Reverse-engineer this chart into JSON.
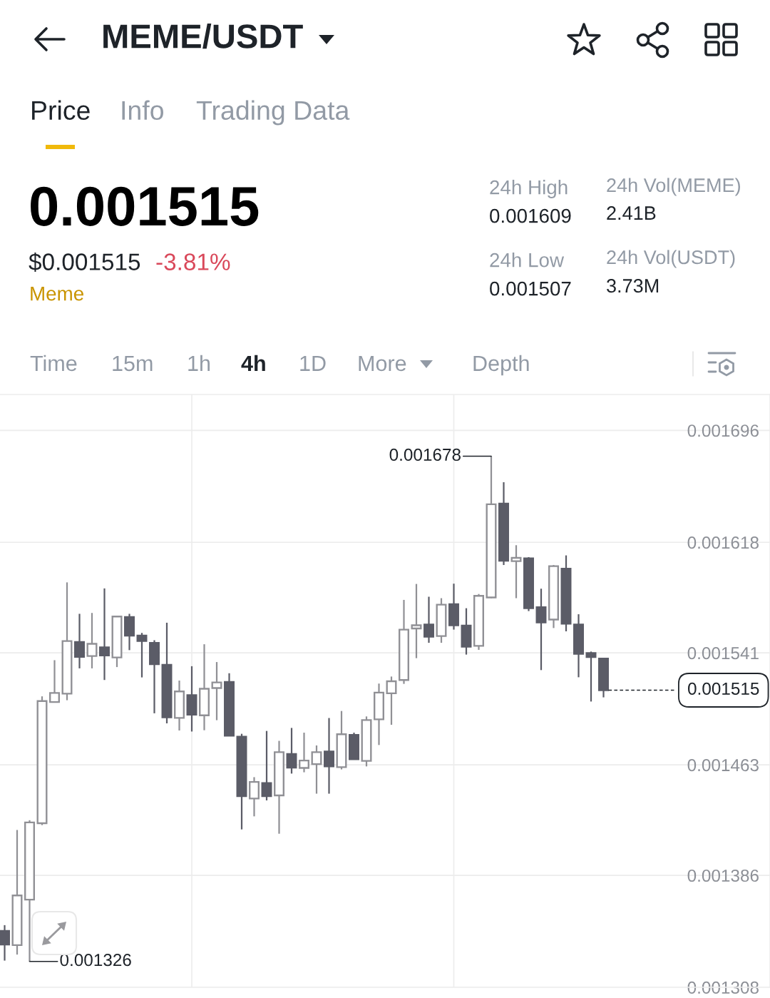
{
  "chart_data": {
    "type": "candlestick",
    "title": "MEME/USDT",
    "categories": [
      null,
      null,
      null,
      null,
      null,
      null,
      null,
      null,
      null,
      null,
      null,
      null,
      null,
      null,
      null,
      null,
      null,
      null,
      null,
      null,
      null,
      null,
      null,
      null,
      null,
      null,
      null,
      null,
      null,
      null,
      null,
      null,
      null,
      null,
      null,
      null,
      null,
      null,
      null,
      null,
      null,
      null,
      null,
      null,
      null,
      null,
      null,
      null,
      null
    ],
    "ohlc": [
      [
        0.0013473,
        0.0013513,
        0.0013266,
        0.0013378
      ],
      [
        0.0013374,
        0.0014176,
        0.0013308,
        0.001372
      ],
      [
        0.0013691,
        0.0014244,
        0.001326,
        0.0014229
      ],
      [
        0.0014223,
        0.0015107,
        0.001421,
        0.0015074
      ],
      [
        0.0015067,
        0.0015359,
        0.0015067,
        0.0015131
      ],
      [
        0.0015126,
        0.0015901,
        0.001508,
        0.0015492
      ],
      [
        0.0015486,
        0.0015682,
        0.0015302,
        0.0015382
      ],
      [
        0.0015388,
        0.0015688,
        0.0015302,
        0.0015473
      ],
      [
        0.0015449,
        0.0015859,
        0.0015221,
        0.0015392
      ],
      [
        0.0015378,
        0.0015667,
        0.0015311,
        0.0015663
      ],
      [
        0.001566,
        0.0015682,
        0.0015429,
        0.001553
      ],
      [
        0.001553,
        0.0015549,
        0.0015239,
        0.0015492
      ],
      [
        0.0015479,
        0.0015498,
        0.0014989,
        0.0015331
      ],
      [
        0.0015327,
        0.001562,
        0.0014919,
        0.0014961
      ],
      [
        0.0014957,
        0.0015217,
        0.0014869,
        0.0015141
      ],
      [
        0.0015116,
        0.0015317,
        0.0014862,
        0.0014979
      ],
      [
        0.0014975,
        0.001547,
        0.0014871,
        0.001516
      ],
      [
        0.0015165,
        0.0015346,
        0.0014941,
        0.0015204
      ],
      [
        0.0015207,
        0.0015268,
        0.0014833,
        0.0014833
      ],
      [
        0.0014826,
        0.0014846,
        0.001418,
        0.0014412
      ],
      [
        0.0014395,
        0.0014544,
        0.0014271,
        0.0014511
      ],
      [
        0.0014503,
        0.0014866,
        0.0014382,
        0.0014412
      ],
      [
        0.0014417,
        0.0014797,
        0.001415,
        0.0014718
      ],
      [
        0.0014705,
        0.0014887,
        0.0014569,
        0.0014611
      ],
      [
        0.0014608,
        0.0014854,
        0.0014578,
        0.001466
      ],
      [
        0.0014635,
        0.0014765,
        0.0014429,
        0.0014718
      ],
      [
        0.0014723,
        0.0014956,
        0.0014429,
        0.0014619
      ],
      [
        0.0014614,
        0.0015005,
        0.0014598,
        0.0014843
      ],
      [
        0.0014838,
        0.0014854,
        0.0014669,
        0.0014669
      ],
      [
        0.0014657,
        0.0014967,
        0.0014619,
        0.0014942
      ],
      [
        0.0014947,
        0.0015196,
        0.0014768,
        0.0015133
      ],
      [
        0.0015128,
        0.0015245,
        0.0014909,
        0.0015212
      ],
      [
        0.0015221,
        0.0015779,
        0.0015194,
        0.0015572
      ],
      [
        0.001558,
        0.001589,
        0.0015373,
        0.0015602
      ],
      [
        0.0015608,
        0.0015801,
        0.001548,
        0.0015522
      ],
      [
        0.0015527,
        0.0015791,
        0.001548,
        0.0015746
      ],
      [
        0.0015749,
        0.0015892,
        0.0015572,
        0.0015602
      ],
      [
        0.00156,
        0.0015721,
        0.0015398,
        0.0015453
      ],
      [
        0.0015459,
        0.001582,
        0.0015431,
        0.0015807
      ],
      [
        0.0015796,
        0.001678,
        0.0015791,
        0.0016445
      ],
      [
        0.001645,
        0.0016599,
        0.0016022,
        0.0016052
      ],
      [
        0.0016049,
        0.001616,
        0.0015791,
        0.0016072
      ],
      [
        0.0016069,
        0.0016077,
        0.0015701,
        0.0015721
      ],
      [
        0.0015728,
        0.0015857,
        0.001529,
        0.0015622
      ],
      [
        0.0015642,
        0.0016022,
        0.0015583,
        0.0016014
      ],
      [
        0.0015997,
        0.0016089,
        0.001556,
        0.0015613
      ],
      [
        0.0015608,
        0.0015679,
        0.001524,
        0.0015403
      ],
      [
        0.0015409,
        0.0015419,
        0.0015071,
        0.0015381
      ],
      [
        0.001537,
        0.001537,
        0.00151,
        0.001515
      ]
    ],
    "colors": [
      "#5b5c67",
      "#909095",
      "#909095",
      "#909095",
      "#909095",
      "#909095",
      "#5b5c67",
      "#909095",
      "#5b5c67",
      "#909095",
      "#5b5c67",
      "#5b5c67",
      "#5b5c67",
      "#5b5c67",
      "#909095",
      "#5b5c67",
      "#909095",
      "#909095",
      "#5b5c67",
      "#5b5c67",
      "#909095",
      "#5b5c67",
      "#909095",
      "#5b5c67",
      "#909095",
      "#909095",
      "#5b5c67",
      "#909095",
      "#5b5c67",
      "#909095",
      "#909095",
      "#909095",
      "#909095",
      "#909095",
      "#5b5c67",
      "#909095",
      "#5b5c67",
      "#5b5c67",
      "#909095",
      "#909095",
      "#5b5c67",
      "#909095",
      "#5b5c67",
      "#5b5c67",
      "#909095",
      "#5b5c67",
      "#5b5c67",
      "#5b5c67",
      "#5b5c67"
    ],
    "ylim": [
      0.001308,
      0.001721
    ],
    "yticks": [
      0.001308,
      0.001386,
      0.001463,
      0.001541,
      0.001618,
      0.001696
    ],
    "tick_labels": "y",
    "grid": "y",
    "ref_lines": [
      {
        "axis": "y",
        "value": 0.001515,
        "label": "0.001515",
        "line_style": "dashed",
        "color": "#1e2329"
      }
    ],
    "annotations": [
      "Price",
      "Info",
      "Trading Data",
      "0.001515",
      "$0.001515",
      "-3.81%",
      "Meme",
      "24h High",
      "0.001609",
      "24h Low",
      "0.001507",
      "24h Vol(MEME)",
      "2.41B",
      "24h Vol(USDT)",
      "3.73M",
      "Time",
      "15m",
      "1h",
      "4h",
      "1D",
      "More",
      "Depth",
      "0.001678",
      "0.001326"
    ]
  }
}
